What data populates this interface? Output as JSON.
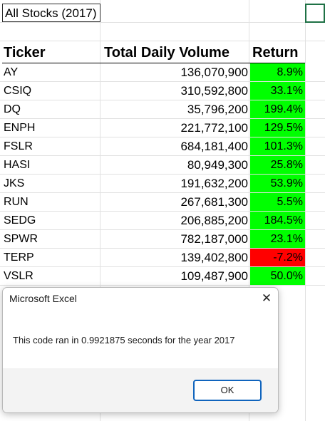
{
  "sheet": {
    "title": "All Stocks (2017)",
    "headers": {
      "ticker": "Ticker",
      "volume": "Total Daily Volume",
      "return": "Return"
    },
    "rows": [
      {
        "ticker": "AY",
        "volume": "136,070,900",
        "return": "8.9%",
        "status": "positive"
      },
      {
        "ticker": "CSIQ",
        "volume": "310,592,800",
        "return": "33.1%",
        "status": "positive"
      },
      {
        "ticker": "DQ",
        "volume": "35,796,200",
        "return": "199.4%",
        "status": "positive"
      },
      {
        "ticker": "ENPH",
        "volume": "221,772,100",
        "return": "129.5%",
        "status": "positive"
      },
      {
        "ticker": "FSLR",
        "volume": "684,181,400",
        "return": "101.3%",
        "status": "positive"
      },
      {
        "ticker": "HASI",
        "volume": "80,949,300",
        "return": "25.8%",
        "status": "positive"
      },
      {
        "ticker": "JKS",
        "volume": "191,632,200",
        "return": "53.9%",
        "status": "positive"
      },
      {
        "ticker": "RUN",
        "volume": "267,681,300",
        "return": "5.5%",
        "status": "positive"
      },
      {
        "ticker": "SEDG",
        "volume": "206,885,200",
        "return": "184.5%",
        "status": "positive"
      },
      {
        "ticker": "SPWR",
        "volume": "782,187,000",
        "return": "23.1%",
        "status": "positive"
      },
      {
        "ticker": "TERP",
        "volume": "139,402,800",
        "return": "-7.2%",
        "status": "negative"
      },
      {
        "ticker": "VSLR",
        "volume": "109,487,900",
        "return": "50.0%",
        "status": "positive"
      }
    ]
  },
  "colors": {
    "positive": "#00ff00",
    "negative": "#ff0000",
    "gridline": "#e1e1e1",
    "selection_border": "#1e7145",
    "ok_button_border": "#1064bd"
  },
  "dialog": {
    "title": "Microsoft Excel",
    "close_icon": "close-icon",
    "close_glyph": "✕",
    "message": "This code ran in 0.9921875 seconds for the year 2017",
    "ok_label": "OK"
  }
}
